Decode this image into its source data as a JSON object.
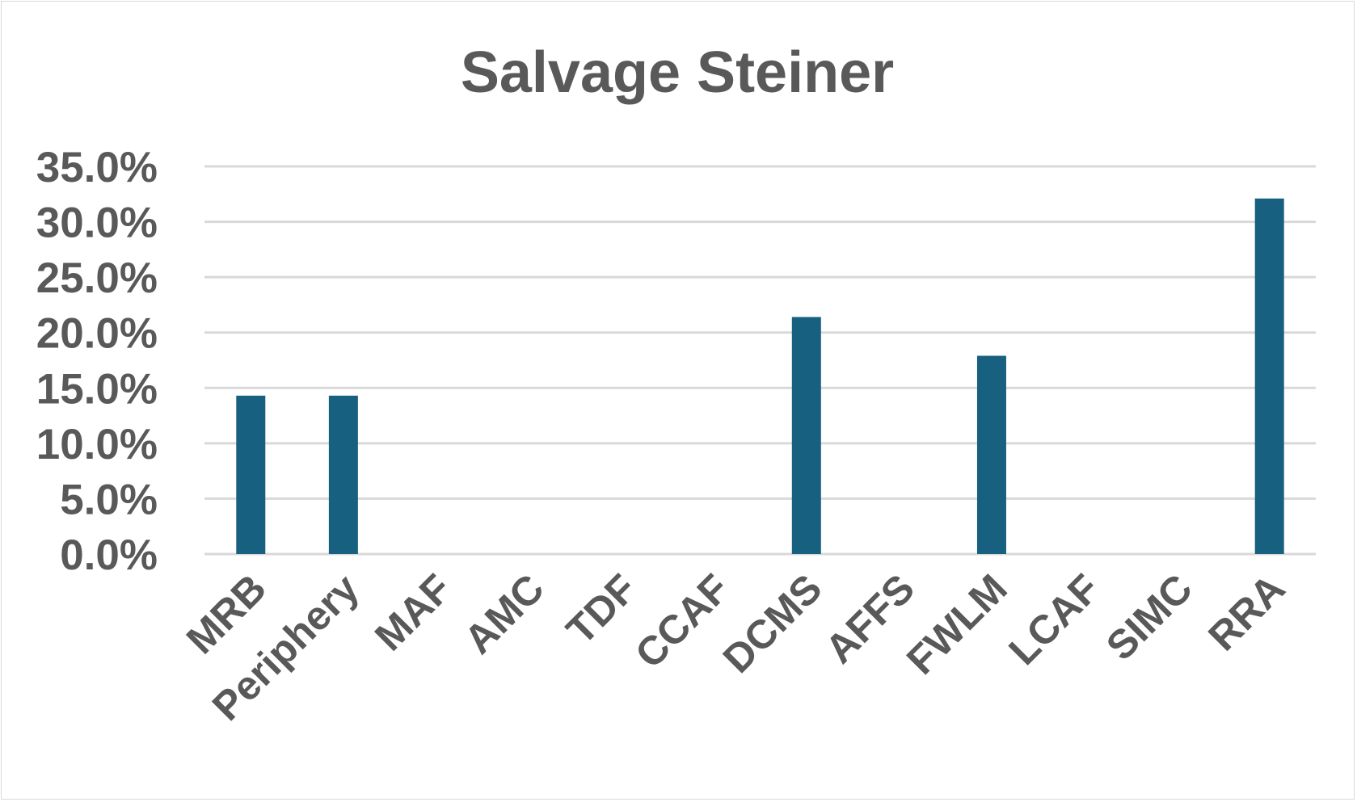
{
  "chart_data": {
    "type": "bar",
    "title": "Salvage Steiner",
    "xlabel": "",
    "ylabel": "",
    "categories": [
      "MRB",
      "Periphery",
      "MAF",
      "AMC",
      "TDF",
      "CCAF",
      "DCMS",
      "AFFS",
      "FWLM",
      "LCAF",
      "SIMC",
      "RRA"
    ],
    "values": [
      14.3,
      14.3,
      0,
      0,
      0,
      0,
      21.4,
      0,
      17.9,
      0,
      0,
      32.1
    ],
    "y_unit": "percent",
    "ylim": [
      0,
      35
    ],
    "yticks": [
      0,
      5,
      10,
      15,
      20,
      25,
      30,
      35
    ],
    "ytick_labels": [
      "0.0%",
      "5.0%",
      "10.0%",
      "15.0%",
      "20.0%",
      "25.0%",
      "30.0%",
      "35.0%"
    ],
    "grid": true,
    "legend": "none",
    "bar_color": "#17607f"
  }
}
